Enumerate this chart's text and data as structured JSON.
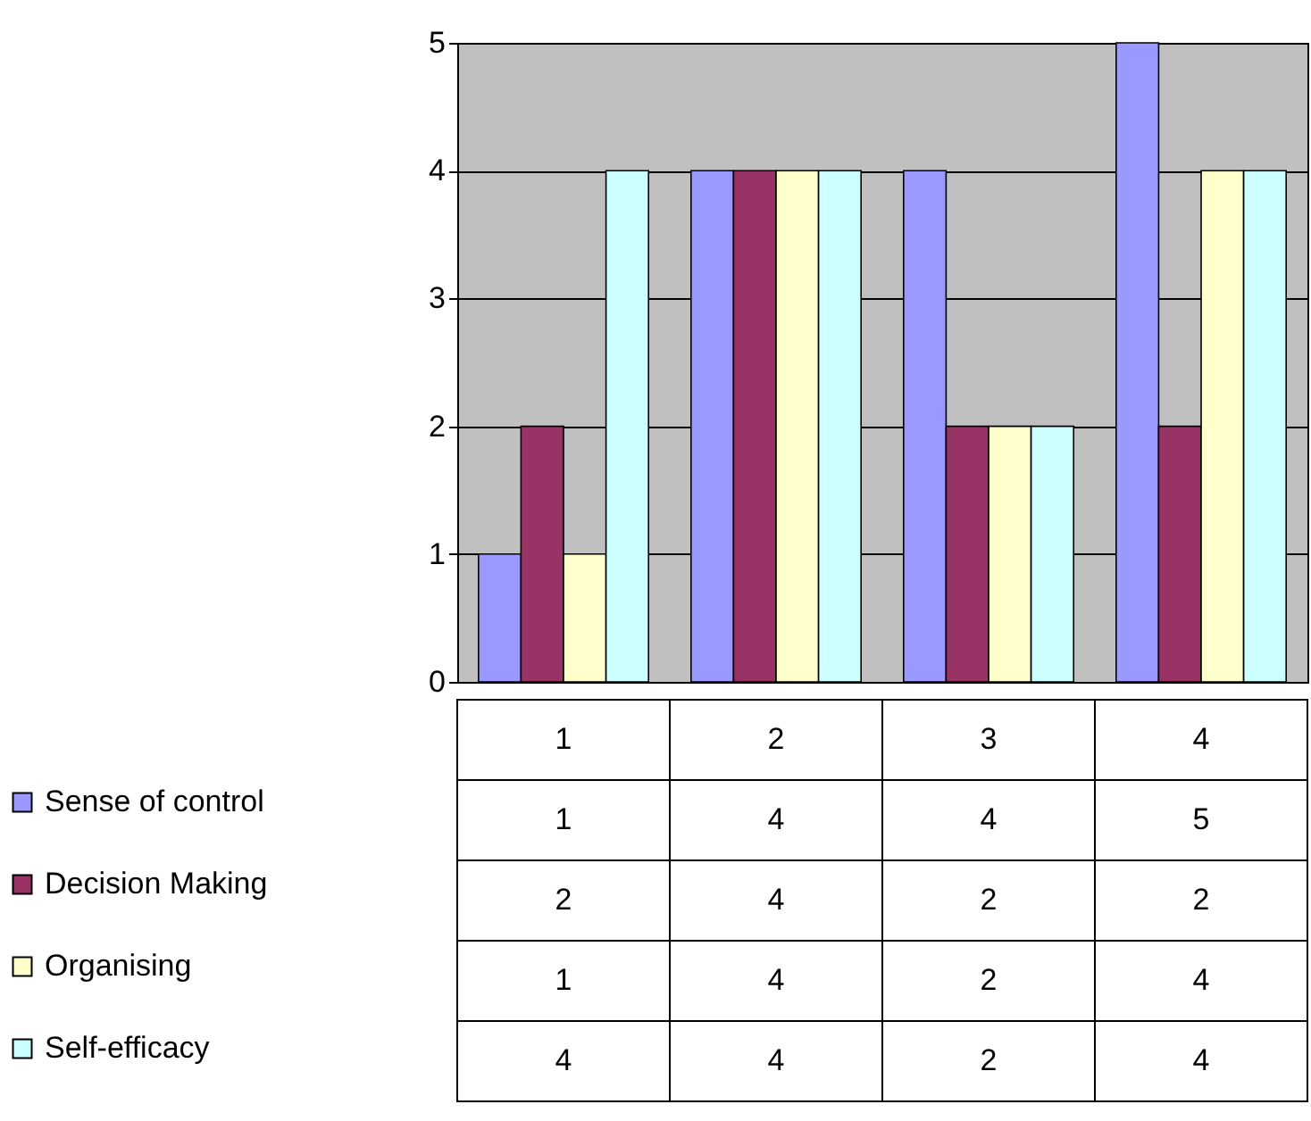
{
  "chart_data": {
    "type": "bar",
    "categories": [
      "1",
      "2",
      "3",
      "4"
    ],
    "series": [
      {
        "name": "Sense of control",
        "color": "#9999ff",
        "values": [
          1,
          4,
          4,
          5
        ]
      },
      {
        "name": "Decision Making",
        "color": "#993366",
        "values": [
          2,
          4,
          2,
          2
        ]
      },
      {
        "name": "Organising",
        "color": "#ffffcc",
        "values": [
          1,
          4,
          2,
          4
        ]
      },
      {
        "name": "Self-efficacy",
        "color": "#ccffff",
        "values": [
          4,
          4,
          2,
          4
        ]
      }
    ],
    "ylim": [
      0,
      5
    ],
    "yticks": [
      0,
      1,
      2,
      3,
      4,
      5
    ],
    "grid": "y",
    "legend": "bottom left",
    "data_labels": true
  }
}
